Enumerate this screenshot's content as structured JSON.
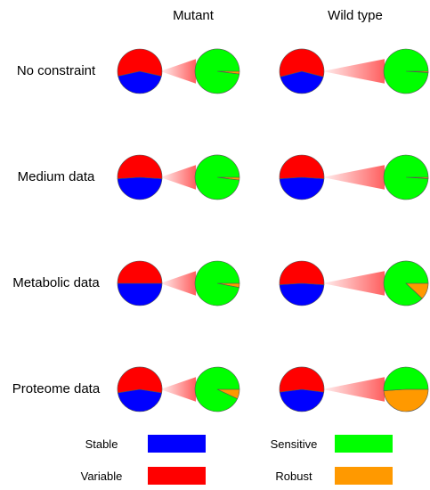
{
  "chart_data": {
    "type": "pie",
    "columns": [
      "Mutant",
      "Wild type"
    ],
    "rows": [
      {
        "label": "No constraint",
        "mutant": {
          "stable": 0.43,
          "variable": 0.57,
          "sensitive": 0.98,
          "robust": 0.02
        },
        "wild_type": {
          "stable": 0.42,
          "variable": 0.58,
          "sensitive": 0.99,
          "robust": 0.01
        }
      },
      {
        "label": "Medium data",
        "mutant": {
          "stable": 0.48,
          "variable": 0.52,
          "sensitive": 0.98,
          "robust": 0.02
        },
        "wild_type": {
          "stable": 0.48,
          "variable": 0.52,
          "sensitive": 0.99,
          "robust": 0.01
        }
      },
      {
        "label": "Metabolic data",
        "mutant": {
          "stable": 0.5,
          "variable": 0.5,
          "sensitive": 0.97,
          "robust": 0.03
        },
        "wild_type": {
          "stable": 0.48,
          "variable": 0.52,
          "sensitive": 0.88,
          "robust": 0.12
        }
      },
      {
        "label": "Proteome data",
        "mutant": {
          "stable": 0.45,
          "variable": 0.55,
          "sensitive": 0.93,
          "robust": 0.07
        },
        "wild_type": {
          "stable": 0.46,
          "variable": 0.54,
          "sensitive": 0.51,
          "robust": 0.49
        }
      }
    ],
    "legend": [
      {
        "key": "stable",
        "label": "Stable",
        "color": "#0000ff"
      },
      {
        "key": "variable",
        "label": "Variable",
        "color": "#ff0000"
      },
      {
        "key": "sensitive",
        "label": "Sensitive",
        "color": "#00ff00"
      },
      {
        "key": "robust",
        "label": "Robust",
        "color": "#ff9900"
      }
    ],
    "colors": {
      "stable": "#0000ff",
      "variable": "#ff0000",
      "sensitive": "#00ff00",
      "robust": "#ff9900",
      "connector": "#ff4d4d"
    }
  }
}
